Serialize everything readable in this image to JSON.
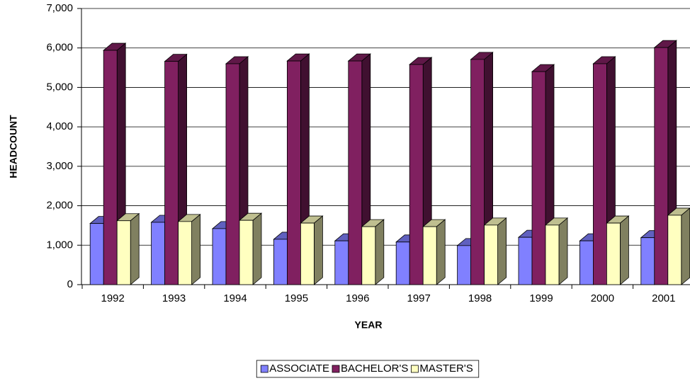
{
  "chart_data": {
    "type": "bar3d",
    "x_label": "YEAR",
    "y_label": "HEADCOUNT",
    "categories": [
      "1992",
      "1993",
      "1994",
      "1995",
      "1996",
      "1997",
      "1998",
      "1999",
      "2000",
      "2001"
    ],
    "series": [
      {
        "name": "ASSOCIATE",
        "color": "#8080ff",
        "values": [
          1550,
          1580,
          1420,
          1150,
          1110,
          1080,
          990,
          1200,
          1110,
          1190
        ]
      },
      {
        "name": "BACHELOR'S",
        "color": "#802060",
        "values": [
          5940,
          5660,
          5600,
          5670,
          5670,
          5580,
          5710,
          5400,
          5600,
          6010
        ]
      },
      {
        "name": "MASTER'S",
        "color": "#ffffc0",
        "values": [
          1620,
          1600,
          1630,
          1560,
          1470,
          1470,
          1510,
          1510,
          1560,
          1760
        ]
      }
    ],
    "ylim": [
      0,
      7000
    ],
    "yticks": [
      0,
      {
        "value": 1000,
        "label": "1,000"
      },
      {
        "value": 2000,
        "label": "2,000"
      },
      {
        "value": 3000,
        "label": "3,000"
      },
      {
        "value": 4000,
        "label": "4,000"
      },
      {
        "value": 5000,
        "label": "5,000"
      },
      {
        "value": 6000,
        "label": "6,000"
      },
      {
        "value": 7000,
        "label": "7,000"
      }
    ],
    "grid": true,
    "legend": "bottom"
  }
}
